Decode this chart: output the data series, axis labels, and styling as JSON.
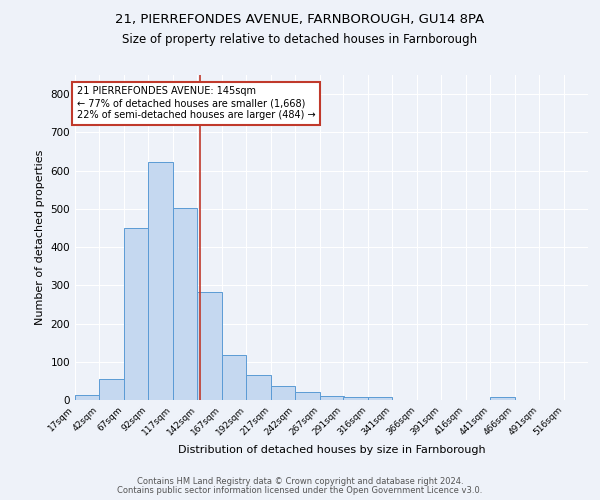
{
  "title_line1": "21, PIERREFONDES AVENUE, FARNBOROUGH, GU14 8PA",
  "title_line2": "Size of property relative to detached houses in Farnborough",
  "xlabel": "Distribution of detached houses by size in Farnborough",
  "ylabel": "Number of detached properties",
  "footnote1": "Contains HM Land Registry data © Crown copyright and database right 2024.",
  "footnote2": "Contains public sector information licensed under the Open Government Licence v3.0.",
  "bar_edges": [
    17,
    42,
    67,
    92,
    117,
    142,
    167,
    192,
    217,
    242,
    267,
    291,
    316,
    341,
    366,
    391,
    416,
    441,
    466,
    491,
    516
  ],
  "bar_heights": [
    12,
    55,
    450,
    622,
    503,
    282,
    117,
    65,
    37,
    22,
    10,
    8,
    8,
    0,
    0,
    0,
    0,
    8,
    0,
    0,
    0
  ],
  "bar_color": "#c5d8f0",
  "bar_edgecolor": "#5b9bd5",
  "property_size": 145,
  "vline_color": "#c0392b",
  "annotation_text": "21 PIERREFONDES AVENUE: 145sqm\n← 77% of detached houses are smaller (1,668)\n22% of semi-detached houses are larger (484) →",
  "annotation_box_edgecolor": "#c0392b",
  "ylim": [
    0,
    850
  ],
  "yticks": [
    0,
    100,
    200,
    300,
    400,
    500,
    600,
    700,
    800
  ],
  "background_color": "#eef2f9",
  "grid_color": "#ffffff"
}
